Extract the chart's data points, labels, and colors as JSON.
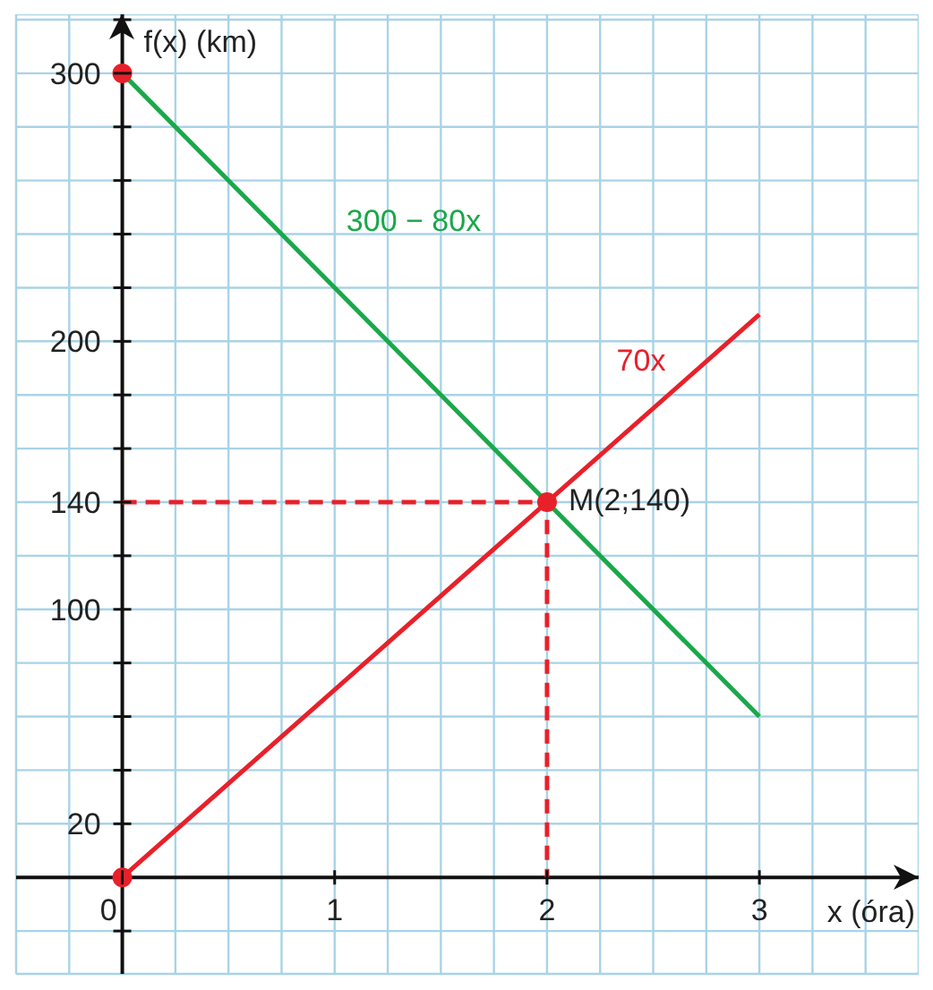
{
  "chart_data": {
    "type": "line",
    "xlabel": "x (óra)",
    "ylabel": "f(x) (km)",
    "xlim": [
      -0.5,
      3.75
    ],
    "ylim": [
      -36,
      322
    ],
    "xticks": [
      {
        "value": -0.25,
        "label": null
      },
      0,
      {
        "value": 0.25,
        "label": null
      },
      {
        "value": 0.5,
        "label": null
      },
      {
        "value": 0.75,
        "label": null
      },
      1,
      {
        "value": 1.25,
        "label": null
      },
      {
        "value": 1.5,
        "label": null
      },
      {
        "value": 1.75,
        "label": null
      },
      2,
      {
        "value": 2.25,
        "label": null
      },
      {
        "value": 2.5,
        "label": null
      },
      {
        "value": 2.75,
        "label": null
      },
      3,
      {
        "value": 3.25,
        "label": null
      },
      {
        "value": 3.5,
        "label": null
      }
    ],
    "yticks": [
      {
        "value": -20,
        "label": null
      },
      {
        "value": 0,
        "label": null
      },
      20,
      {
        "value": 40,
        "label": null
      },
      {
        "value": 60,
        "label": null
      },
      {
        "value": 80,
        "label": null
      },
      100,
      {
        "value": 120,
        "label": null
      },
      140,
      {
        "value": 160,
        "label": null
      },
      {
        "value": 180,
        "label": null
      },
      200,
      {
        "value": 220,
        "label": null
      },
      {
        "value": 240,
        "label": null
      },
      {
        "value": 260,
        "label": null
      },
      {
        "value": 280,
        "label": null
      },
      300,
      {
        "value": 320,
        "label": null
      }
    ],
    "grid": true,
    "series": [
      {
        "type": "line",
        "color": "#1aa84a",
        "x": [
          0,
          3
        ],
        "values": [
          300,
          60
        ]
      },
      {
        "color": "#e8202a",
        "x": [
          0,
          3
        ],
        "values": [
          0,
          210
        ]
      },
      {
        "color": "#e8202a",
        "line_style": "dashed",
        "x": [
          0,
          2,
          2
        ],
        "values": [
          140,
          140,
          0
        ]
      },
      {
        "type": "scatter",
        "color": "#e8202a",
        "marker": "circle",
        "x": [
          0,
          0,
          2
        ],
        "values": [
          300,
          0,
          140
        ],
        "value_labels": [
          null,
          null,
          "M(2;140)"
        ]
      }
    ],
    "annotations": [
      "300 − 80x",
      "70x"
    ]
  }
}
